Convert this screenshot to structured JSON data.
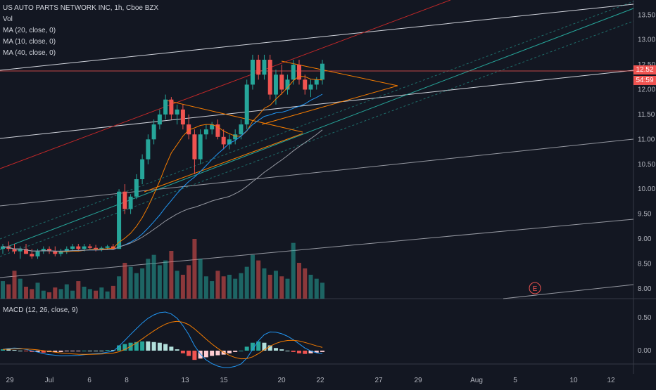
{
  "header": {
    "symbol_line": "US AUTO PARTS NETWORK INC, 1h, Cboe BZX",
    "indicators": [
      "Vol",
      "MA (20, close, 0)",
      "MA (10, close, 0)",
      "MA (40, close, 0)"
    ]
  },
  "macd": {
    "label": "MACD (12, 26, close, 9)"
  },
  "price_tag": {
    "price": "12.52",
    "countdown": "54:59"
  },
  "earnings_marker": "E",
  "chart_data": {
    "type": "candlestick",
    "price_axis": {
      "ticks": [
        "13.50",
        "13.00",
        "12.50",
        "12.00",
        "11.50",
        "11.00",
        "10.50",
        "10.00",
        "9.50",
        "9.00",
        "8.50",
        "8.00"
      ],
      "range": [
        7.8,
        13.8
      ]
    },
    "time_axis": {
      "ticks": [
        "29",
        "Jul",
        "6",
        "8",
        "13",
        "15",
        "20",
        "22",
        "27",
        "29",
        "Aug",
        "5",
        "10",
        "12"
      ]
    },
    "macd_axis": {
      "ticks": [
        "0.50",
        "0.00"
      ]
    },
    "candles": [
      [
        8.8,
        8.9,
        8.7,
        8.85
      ],
      [
        8.85,
        8.95,
        8.75,
        8.8
      ],
      [
        8.8,
        8.9,
        8.7,
        8.75
      ],
      [
        8.75,
        8.85,
        8.6,
        8.8
      ],
      [
        8.8,
        8.9,
        8.7,
        8.7
      ],
      [
        8.7,
        8.8,
        8.6,
        8.65
      ],
      [
        8.65,
        8.8,
        8.6,
        8.75
      ],
      [
        8.75,
        8.85,
        8.7,
        8.8
      ],
      [
        8.8,
        8.85,
        8.7,
        8.75
      ],
      [
        8.75,
        8.85,
        8.65,
        8.7
      ],
      [
        8.7,
        8.8,
        8.65,
        8.75
      ],
      [
        8.75,
        8.85,
        8.7,
        8.8
      ],
      [
        8.8,
        8.9,
        8.75,
        8.85
      ],
      [
        8.85,
        8.9,
        8.75,
        8.8
      ],
      [
        8.8,
        8.9,
        8.75,
        8.85
      ],
      [
        8.85,
        8.9,
        8.8,
        8.82
      ],
      [
        8.82,
        8.88,
        8.75,
        8.8
      ],
      [
        8.8,
        8.85,
        8.75,
        8.82
      ],
      [
        8.82,
        8.88,
        8.78,
        8.85
      ],
      [
        8.85,
        8.9,
        8.78,
        8.8
      ],
      [
        8.8,
        10.0,
        8.8,
        9.95
      ],
      [
        9.95,
        10.1,
        9.5,
        9.6
      ],
      [
        9.6,
        9.9,
        9.5,
        9.85
      ],
      [
        9.85,
        10.3,
        9.8,
        10.2
      ],
      [
        10.2,
        10.7,
        10.1,
        10.6
      ],
      [
        10.6,
        11.1,
        10.5,
        11.0
      ],
      [
        11.0,
        11.4,
        10.9,
        11.3
      ],
      [
        11.3,
        11.6,
        11.2,
        11.5
      ],
      [
        11.5,
        11.9,
        11.4,
        11.8
      ],
      [
        11.8,
        11.85,
        11.4,
        11.5
      ],
      [
        11.5,
        11.7,
        11.3,
        11.6
      ],
      [
        11.6,
        11.7,
        11.2,
        11.3
      ],
      [
        11.3,
        11.5,
        11.0,
        11.1
      ],
      [
        11.1,
        11.2,
        10.3,
        10.6
      ],
      [
        10.6,
        11.2,
        10.5,
        11.1
      ],
      [
        11.1,
        11.3,
        11.0,
        11.2
      ],
      [
        11.2,
        11.35,
        11.1,
        11.3
      ],
      [
        11.3,
        11.4,
        11.0,
        11.05
      ],
      [
        11.05,
        11.2,
        10.8,
        10.9
      ],
      [
        10.9,
        11.1,
        10.8,
        11.0
      ],
      [
        11.0,
        11.2,
        10.9,
        11.1
      ],
      [
        11.1,
        11.4,
        11.0,
        11.3
      ],
      [
        11.3,
        12.2,
        11.2,
        12.1
      ],
      [
        12.1,
        12.7,
        12.0,
        12.6
      ],
      [
        12.6,
        12.7,
        12.2,
        12.3
      ],
      [
        12.3,
        12.7,
        12.2,
        12.6
      ],
      [
        12.6,
        12.7,
        11.8,
        11.9
      ],
      [
        11.9,
        12.4,
        11.7,
        12.3
      ],
      [
        12.3,
        12.5,
        11.9,
        12.0
      ],
      [
        12.0,
        12.3,
        11.9,
        12.2
      ],
      [
        12.2,
        12.6,
        12.1,
        12.5
      ],
      [
        12.5,
        12.6,
        12.1,
        12.2
      ],
      [
        12.2,
        12.3,
        11.9,
        12.0
      ],
      [
        12.0,
        12.2,
        11.85,
        12.1
      ],
      [
        12.1,
        12.25,
        12.0,
        12.2
      ],
      [
        12.2,
        12.6,
        12.1,
        12.52
      ]
    ],
    "volumes": [
      22,
      18,
      35,
      25,
      15,
      12,
      20,
      10,
      8,
      14,
      12,
      18,
      10,
      22,
      15,
      12,
      10,
      14,
      9,
      16,
      28,
      45,
      40,
      32,
      38,
      50,
      55,
      42,
      48,
      60,
      35,
      30,
      42,
      75,
      50,
      28,
      22,
      35,
      28,
      30,
      25,
      32,
      40,
      55,
      48,
      38,
      30,
      35,
      28,
      25,
      70,
      45,
      38,
      30,
      25,
      20
    ],
    "volume_up": [
      1,
      0,
      0,
      1,
      0,
      0,
      1,
      1,
      0,
      0,
      1,
      1,
      1,
      0,
      1,
      1,
      0,
      1,
      1,
      0,
      1,
      0,
      1,
      1,
      1,
      1,
      1,
      1,
      1,
      0,
      1,
      0,
      0,
      0,
      1,
      1,
      1,
      0,
      0,
      1,
      1,
      1,
      1,
      1,
      0,
      1,
      0,
      1,
      0,
      1,
      1,
      0,
      0,
      1,
      1,
      1
    ],
    "macd_hist": [
      0.02,
      0.02,
      0.01,
      0.0,
      -0.01,
      -0.02,
      -0.02,
      -0.03,
      -0.02,
      -0.02,
      -0.02,
      -0.01,
      -0.01,
      -0.01,
      0.0,
      0.0,
      0.0,
      0.0,
      0.01,
      0.01,
      0.08,
      0.1,
      0.12,
      0.13,
      0.14,
      0.14,
      0.13,
      0.12,
      0.1,
      0.06,
      0.02,
      -0.04,
      -0.08,
      -0.14,
      -0.12,
      -0.1,
      -0.08,
      -0.07,
      -0.06,
      -0.04,
      -0.02,
      0.0,
      0.06,
      0.12,
      0.14,
      0.12,
      0.08,
      0.04,
      0.02,
      0.0,
      -0.02,
      -0.04,
      -0.05,
      -0.04,
      -0.03,
      -0.02
    ]
  }
}
